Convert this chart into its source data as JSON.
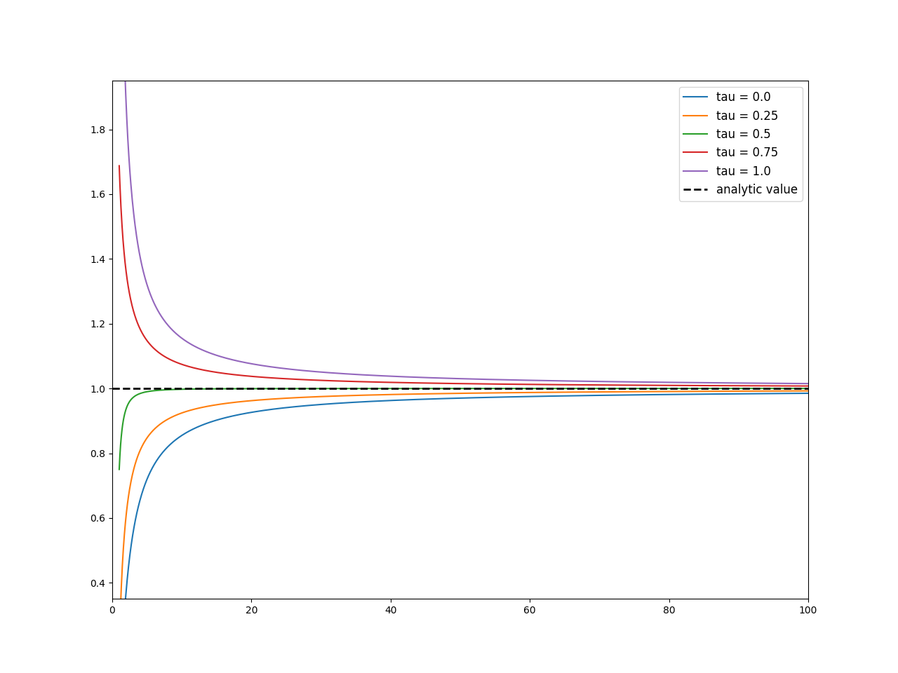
{
  "tau_values": [
    0.0,
    0.25,
    0.5,
    0.75,
    1.0
  ],
  "tau_labels": [
    "tau = 0.0",
    "tau = 0.25",
    "tau = 0.5",
    "tau = 0.75",
    "tau = 1.0"
  ],
  "colors": [
    "#1f77b4",
    "#ff7f0e",
    "#2ca02c",
    "#d62728",
    "#9467bd"
  ],
  "analytic_value": 1.0,
  "analytic_label": "analytic value",
  "N_min": 1,
  "N_max": 100,
  "N_points": 2000,
  "xlim": [
    0,
    100
  ],
  "ylim": [
    0.35,
    1.95
  ],
  "figsize": [
    12.8,
    9.6
  ],
  "dpi": 100
}
